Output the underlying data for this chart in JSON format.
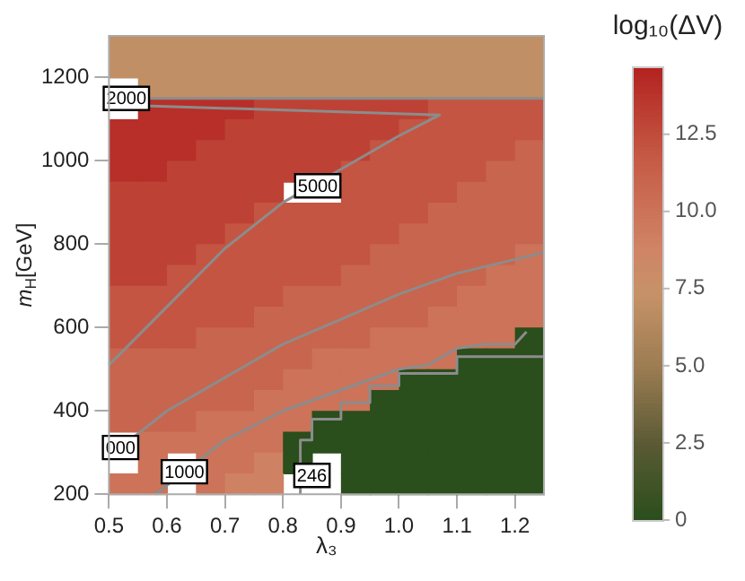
{
  "chart_data": {
    "type": "heatmap",
    "xlabel": "λ₃",
    "ylabel": "m$_{H}$[GeV]",
    "clabel": "log₁₀(ΔV)",
    "x": [
      0.525,
      0.575,
      0.625,
      0.675,
      0.725,
      0.775,
      0.825,
      0.875,
      0.925,
      0.975,
      1.025,
      1.075,
      1.125,
      1.175,
      1.225
    ],
    "cells": [
      [
        7,
        7,
        7,
        7,
        7,
        7,
        7,
        7,
        7,
        7,
        7,
        7,
        7,
        7,
        7
      ],
      [
        7,
        7,
        7,
        7,
        7,
        7,
        7,
        7,
        7,
        7,
        7,
        7,
        7,
        7,
        7
      ],
      [
        null,
        7,
        7,
        7,
        7,
        7,
        7,
        7,
        7,
        7,
        7,
        7,
        7,
        7,
        7
      ],
      [
        null,
        14,
        14,
        14,
        14,
        13,
        13,
        13,
        13,
        13,
        13,
        12,
        12,
        12,
        12
      ],
      [
        14,
        14,
        14,
        14,
        13,
        13,
        13,
        13,
        13,
        13,
        12,
        12,
        12,
        12,
        12
      ],
      [
        14,
        14,
        14,
        13,
        13,
        13,
        13,
        13,
        13,
        12,
        12,
        12,
        12,
        12,
        11
      ],
      [
        14,
        14,
        13,
        13,
        13,
        13,
        13,
        13,
        12,
        12,
        12,
        12,
        12,
        11,
        11
      ],
      [
        13,
        13,
        13,
        13,
        13,
        13,
        null,
        null,
        12,
        12,
        12,
        12,
        11,
        11,
        11
      ],
      [
        13,
        13,
        13,
        13,
        13,
        12,
        12,
        12,
        12,
        12,
        12,
        11,
        11,
        11,
        11
      ],
      [
        13,
        13,
        13,
        13,
        12,
        12,
        12,
        12,
        12,
        12,
        11,
        11,
        11,
        11,
        11
      ],
      [
        13,
        13,
        13,
        12,
        12,
        12,
        12,
        12,
        12,
        11,
        11,
        11,
        11,
        11,
        10
      ],
      [
        13,
        13,
        12,
        12,
        12,
        12,
        12,
        12,
        11,
        11,
        11,
        11,
        11,
        10,
        10
      ],
      [
        12,
        12,
        12,
        12,
        12,
        12,
        11,
        11,
        11,
        11,
        11,
        11,
        10,
        10,
        10
      ],
      [
        12,
        12,
        12,
        12,
        12,
        11,
        11,
        11,
        11,
        11,
        11,
        10,
        10,
        10,
        10
      ],
      [
        12,
        12,
        12,
        11,
        11,
        11,
        11,
        11,
        11,
        10,
        10,
        10,
        10,
        10,
        0
      ],
      [
        11,
        11,
        11,
        11,
        11,
        11,
        11,
        10,
        10,
        10,
        10,
        10,
        0,
        0,
        0
      ],
      [
        11,
        11,
        11,
        11,
        11,
        11,
        10,
        10,
        10,
        10,
        0,
        0,
        0,
        0,
        0
      ],
      [
        11,
        11,
        11,
        11,
        11,
        10,
        10,
        10,
        10,
        0,
        0,
        0,
        0,
        0,
        0
      ],
      [
        11,
        11,
        11,
        10,
        10,
        10,
        10,
        0,
        0,
        0,
        0,
        0,
        0,
        0,
        0
      ],
      [
        null,
        10,
        10,
        10,
        10,
        10,
        0,
        0,
        0,
        0,
        0,
        0,
        0,
        0,
        0
      ],
      [
        null,
        10,
        null,
        10,
        10,
        9,
        0,
        null,
        0,
        0,
        0,
        0,
        0,
        0,
        0
      ],
      [
        10,
        10,
        null,
        10,
        9,
        9,
        null,
        null,
        0,
        0,
        0,
        0,
        0,
        0,
        0
      ]
    ],
    "clim": [
      0,
      14.7
    ],
    "cticks": [
      0,
      2.5,
      {
        "value": 5,
        "label": "5.0"
      },
      7.5,
      {
        "value": 10,
        "label": "10.0"
      },
      12.5
    ],
    "xlim": [
      0.5,
      1.25
    ],
    "ylim": [
      200,
      1300
    ],
    "xticks": [
      0.5,
      0.6,
      0.7,
      0.8,
      0.9,
      {
        "value": 1,
        "label": "1.0"
      },
      1.1,
      1.2
    ],
    "yticks": [
      200,
      400,
      600,
      800,
      1000,
      1200
    ],
    "series": [
      {
        "type": "line",
        "color": "#8c8c8c",
        "x": [
          0.5,
          1.25
        ],
        "values": [
          1150,
          1150
        ]
      },
      {
        "type": "line",
        "color": "#8c8c8c",
        "x": [
          0.5,
          0.6,
          0.7,
          0.8,
          0.9,
          1.0,
          1.07,
          0.5
        ],
        "values": [
          510,
          650,
          790,
          900,
          980,
          1060,
          1110,
          1135
        ]
      },
      {
        "type": "line",
        "color": "#8c8c8c",
        "x": [
          0.5,
          0.6,
          0.7,
          0.8,
          0.9,
          1.0,
          1.1,
          1.25
        ],
        "values": [
          290,
          400,
          480,
          560,
          620,
          680,
          730,
          780
        ]
      },
      {
        "type": "line",
        "color": "#8c8c8c",
        "x": [
          0.58,
          0.7,
          0.8,
          0.9,
          1.0,
          1.05,
          1.1,
          1.15,
          1.2,
          1.22
        ],
        "values": [
          200,
          330,
          400,
          450,
          500,
          510,
          550,
          560,
          560,
          590
        ]
      },
      {
        "type": "line",
        "color": "#8c8c8c",
        "x": [
          0.83,
          0.83,
          0.85,
          0.85,
          0.9,
          0.9,
          0.95,
          0.95,
          1.0,
          1.0,
          1.1,
          1.1,
          1.25
        ],
        "values": [
          200,
          330,
          330,
          380,
          380,
          420,
          420,
          460,
          460,
          490,
          490,
          530,
          530
        ]
      }
    ],
    "annotations": [
      {
        "text": "2000",
        "x": 0.53,
        "y": 1150
      },
      {
        "text": "5000",
        "x": 0.86,
        "y": 940
      },
      {
        "text": "000",
        "x": 0.52,
        "y": 312
      },
      {
        "text": "1000",
        "x": 0.63,
        "y": 254
      },
      {
        "text": "246",
        "x": 0.85,
        "y": 245
      }
    ]
  }
}
